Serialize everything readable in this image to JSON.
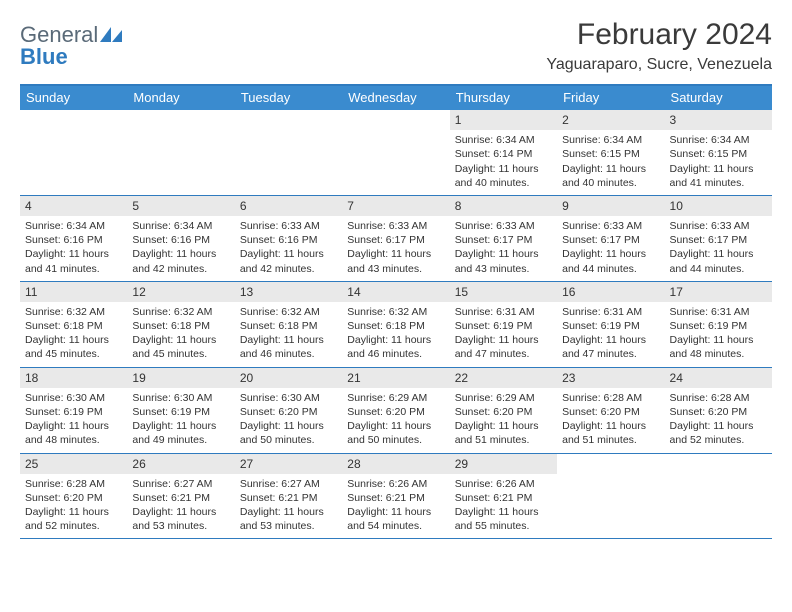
{
  "logo": {
    "word1": "General",
    "word2": "Blue",
    "shape_color": "#2f7bbf"
  },
  "header": {
    "month_title": "February 2024",
    "location": "Yaguaraparo, Sucre, Venezuela"
  },
  "colors": {
    "header_bar": "#3a8bcf",
    "border": "#2f7bbf",
    "daynum_bg": "#e9e9e9",
    "text": "#333333",
    "white": "#ffffff"
  },
  "fonts": {
    "title_size_pt": 22,
    "location_size_pt": 12,
    "dow_size_pt": 10,
    "body_size_pt": 8
  },
  "days_of_week": [
    "Sunday",
    "Monday",
    "Tuesday",
    "Wednesday",
    "Thursday",
    "Friday",
    "Saturday"
  ],
  "weeks": [
    [
      {
        "empty": true
      },
      {
        "empty": true
      },
      {
        "empty": true
      },
      {
        "empty": true
      },
      {
        "num": "1",
        "sunrise": "Sunrise: 6:34 AM",
        "sunset": "Sunset: 6:14 PM",
        "day1": "Daylight: 11 hours",
        "day2": "and 40 minutes."
      },
      {
        "num": "2",
        "sunrise": "Sunrise: 6:34 AM",
        "sunset": "Sunset: 6:15 PM",
        "day1": "Daylight: 11 hours",
        "day2": "and 40 minutes."
      },
      {
        "num": "3",
        "sunrise": "Sunrise: 6:34 AM",
        "sunset": "Sunset: 6:15 PM",
        "day1": "Daylight: 11 hours",
        "day2": "and 41 minutes."
      }
    ],
    [
      {
        "num": "4",
        "sunrise": "Sunrise: 6:34 AM",
        "sunset": "Sunset: 6:16 PM",
        "day1": "Daylight: 11 hours",
        "day2": "and 41 minutes."
      },
      {
        "num": "5",
        "sunrise": "Sunrise: 6:34 AM",
        "sunset": "Sunset: 6:16 PM",
        "day1": "Daylight: 11 hours",
        "day2": "and 42 minutes."
      },
      {
        "num": "6",
        "sunrise": "Sunrise: 6:33 AM",
        "sunset": "Sunset: 6:16 PM",
        "day1": "Daylight: 11 hours",
        "day2": "and 42 minutes."
      },
      {
        "num": "7",
        "sunrise": "Sunrise: 6:33 AM",
        "sunset": "Sunset: 6:17 PM",
        "day1": "Daylight: 11 hours",
        "day2": "and 43 minutes."
      },
      {
        "num": "8",
        "sunrise": "Sunrise: 6:33 AM",
        "sunset": "Sunset: 6:17 PM",
        "day1": "Daylight: 11 hours",
        "day2": "and 43 minutes."
      },
      {
        "num": "9",
        "sunrise": "Sunrise: 6:33 AM",
        "sunset": "Sunset: 6:17 PM",
        "day1": "Daylight: 11 hours",
        "day2": "and 44 minutes."
      },
      {
        "num": "10",
        "sunrise": "Sunrise: 6:33 AM",
        "sunset": "Sunset: 6:17 PM",
        "day1": "Daylight: 11 hours",
        "day2": "and 44 minutes."
      }
    ],
    [
      {
        "num": "11",
        "sunrise": "Sunrise: 6:32 AM",
        "sunset": "Sunset: 6:18 PM",
        "day1": "Daylight: 11 hours",
        "day2": "and 45 minutes."
      },
      {
        "num": "12",
        "sunrise": "Sunrise: 6:32 AM",
        "sunset": "Sunset: 6:18 PM",
        "day1": "Daylight: 11 hours",
        "day2": "and 45 minutes."
      },
      {
        "num": "13",
        "sunrise": "Sunrise: 6:32 AM",
        "sunset": "Sunset: 6:18 PM",
        "day1": "Daylight: 11 hours",
        "day2": "and 46 minutes."
      },
      {
        "num": "14",
        "sunrise": "Sunrise: 6:32 AM",
        "sunset": "Sunset: 6:18 PM",
        "day1": "Daylight: 11 hours",
        "day2": "and 46 minutes."
      },
      {
        "num": "15",
        "sunrise": "Sunrise: 6:31 AM",
        "sunset": "Sunset: 6:19 PM",
        "day1": "Daylight: 11 hours",
        "day2": "and 47 minutes."
      },
      {
        "num": "16",
        "sunrise": "Sunrise: 6:31 AM",
        "sunset": "Sunset: 6:19 PM",
        "day1": "Daylight: 11 hours",
        "day2": "and 47 minutes."
      },
      {
        "num": "17",
        "sunrise": "Sunrise: 6:31 AM",
        "sunset": "Sunset: 6:19 PM",
        "day1": "Daylight: 11 hours",
        "day2": "and 48 minutes."
      }
    ],
    [
      {
        "num": "18",
        "sunrise": "Sunrise: 6:30 AM",
        "sunset": "Sunset: 6:19 PM",
        "day1": "Daylight: 11 hours",
        "day2": "and 48 minutes."
      },
      {
        "num": "19",
        "sunrise": "Sunrise: 6:30 AM",
        "sunset": "Sunset: 6:19 PM",
        "day1": "Daylight: 11 hours",
        "day2": "and 49 minutes."
      },
      {
        "num": "20",
        "sunrise": "Sunrise: 6:30 AM",
        "sunset": "Sunset: 6:20 PM",
        "day1": "Daylight: 11 hours",
        "day2": "and 50 minutes."
      },
      {
        "num": "21",
        "sunrise": "Sunrise: 6:29 AM",
        "sunset": "Sunset: 6:20 PM",
        "day1": "Daylight: 11 hours",
        "day2": "and 50 minutes."
      },
      {
        "num": "22",
        "sunrise": "Sunrise: 6:29 AM",
        "sunset": "Sunset: 6:20 PM",
        "day1": "Daylight: 11 hours",
        "day2": "and 51 minutes."
      },
      {
        "num": "23",
        "sunrise": "Sunrise: 6:28 AM",
        "sunset": "Sunset: 6:20 PM",
        "day1": "Daylight: 11 hours",
        "day2": "and 51 minutes."
      },
      {
        "num": "24",
        "sunrise": "Sunrise: 6:28 AM",
        "sunset": "Sunset: 6:20 PM",
        "day1": "Daylight: 11 hours",
        "day2": "and 52 minutes."
      }
    ],
    [
      {
        "num": "25",
        "sunrise": "Sunrise: 6:28 AM",
        "sunset": "Sunset: 6:20 PM",
        "day1": "Daylight: 11 hours",
        "day2": "and 52 minutes."
      },
      {
        "num": "26",
        "sunrise": "Sunrise: 6:27 AM",
        "sunset": "Sunset: 6:21 PM",
        "day1": "Daylight: 11 hours",
        "day2": "and 53 minutes."
      },
      {
        "num": "27",
        "sunrise": "Sunrise: 6:27 AM",
        "sunset": "Sunset: 6:21 PM",
        "day1": "Daylight: 11 hours",
        "day2": "and 53 minutes."
      },
      {
        "num": "28",
        "sunrise": "Sunrise: 6:26 AM",
        "sunset": "Sunset: 6:21 PM",
        "day1": "Daylight: 11 hours",
        "day2": "and 54 minutes."
      },
      {
        "num": "29",
        "sunrise": "Sunrise: 6:26 AM",
        "sunset": "Sunset: 6:21 PM",
        "day1": "Daylight: 11 hours",
        "day2": "and 55 minutes."
      },
      {
        "empty": true
      },
      {
        "empty": true
      }
    ]
  ]
}
